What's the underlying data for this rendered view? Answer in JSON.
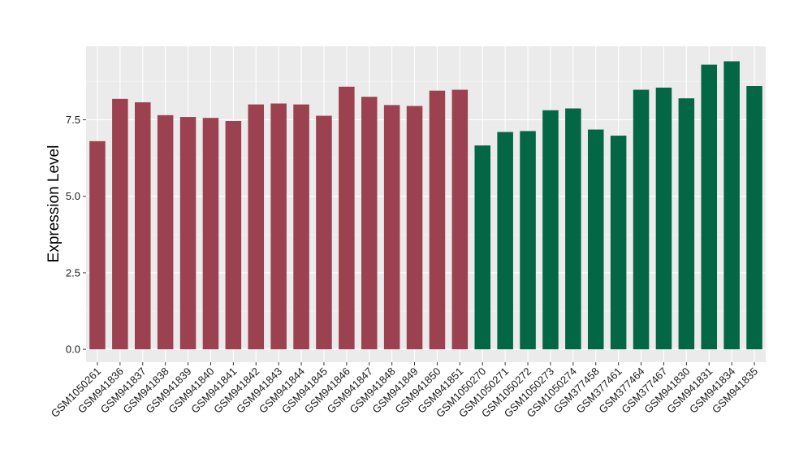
{
  "chart_data": {
    "type": "bar",
    "title": "",
    "xlabel": "",
    "ylabel": "Expression Level",
    "ylim": [
      -0.42,
      9.9
    ],
    "yticks": [
      0.0,
      2.5,
      5.0,
      7.5
    ],
    "ytick_labels": [
      "0.0",
      "2.5",
      "5.0",
      "7.5"
    ],
    "grid": true,
    "legend": "none",
    "panel_background": "#ebebeb",
    "categories": [
      "GSM1050261",
      "GSM941836",
      "GSM941837",
      "GSM941838",
      "GSM941839",
      "GSM941840",
      "GSM941841",
      "GSM941842",
      "GSM941843",
      "GSM941844",
      "GSM941845",
      "GSM941846",
      "GSM941847",
      "GSM941848",
      "GSM941849",
      "GSM941850",
      "GSM941851",
      "GSM1050270",
      "GSM1050271",
      "GSM1050272",
      "GSM1050273",
      "GSM1050274",
      "GSM377458",
      "GSM377461",
      "GSM377464",
      "GSM377467",
      "GSM941830",
      "GSM941831",
      "GSM941834",
      "GSM941835"
    ],
    "values": [
      6.8,
      8.18,
      8.07,
      7.65,
      7.59,
      7.56,
      7.46,
      8.0,
      8.03,
      8.0,
      7.63,
      8.58,
      8.25,
      7.98,
      7.95,
      8.45,
      8.48,
      6.66,
      7.1,
      7.13,
      7.81,
      7.87,
      7.18,
      6.98,
      8.48,
      8.55,
      8.2,
      9.3,
      9.41,
      8.6
    ],
    "colors": [
      "#9b4150",
      "#9b4150",
      "#9b4150",
      "#9b4150",
      "#9b4150",
      "#9b4150",
      "#9b4150",
      "#9b4150",
      "#9b4150",
      "#9b4150",
      "#9b4150",
      "#9b4150",
      "#9b4150",
      "#9b4150",
      "#9b4150",
      "#9b4150",
      "#9b4150",
      "#036645",
      "#036645",
      "#036645",
      "#036645",
      "#036645",
      "#036645",
      "#036645",
      "#036645",
      "#036645",
      "#036645",
      "#036645",
      "#036645",
      "#036645"
    ]
  }
}
